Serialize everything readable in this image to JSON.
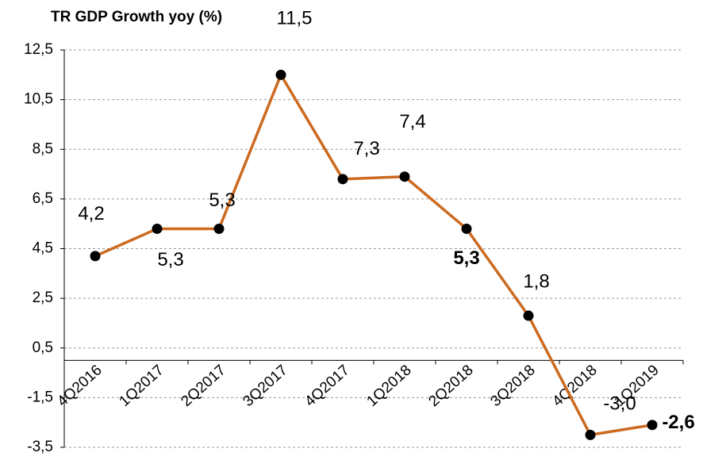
{
  "chart_data": {
    "type": "line",
    "title": "TR GDP Growth yoy (%)",
    "categories": [
      "4Q2016",
      "1Q2017",
      "2Q2017",
      "3Q2017",
      "4Q2017",
      "1Q2018",
      "2Q2018",
      "3Q2018",
      "4Q2018",
      "1Q2019"
    ],
    "series": [
      {
        "name": "TR GDP Growth yoy",
        "color": "#cc6a1f",
        "values": [
          4.2,
          5.3,
          5.3,
          11.5,
          7.3,
          7.4,
          5.3,
          1.8,
          -3.0,
          -2.6
        ],
        "value_labels": [
          "4,2",
          "5,3",
          "5,3",
          "11,5",
          "7,3",
          "7,4",
          "5,3",
          "1,8",
          "-3,0",
          "-2,6"
        ]
      }
    ],
    "ylim": [
      -3.5,
      12.5
    ],
    "yticks": [
      {
        "value": -3.5,
        "label": "-3,5"
      },
      {
        "value": -1.5,
        "label": "-1,5"
      },
      {
        "value": 0.5,
        "label": "0,5"
      },
      {
        "value": 2.5,
        "label": "2,5"
      },
      {
        "value": 4.5,
        "label": "4,5"
      },
      {
        "value": 6.5,
        "label": "6,5"
      },
      {
        "value": 8.5,
        "label": "8,5"
      },
      {
        "value": 10.5,
        "label": "10,5"
      },
      {
        "value": 12.5,
        "label": "12,5"
      }
    ],
    "grid": true
  }
}
